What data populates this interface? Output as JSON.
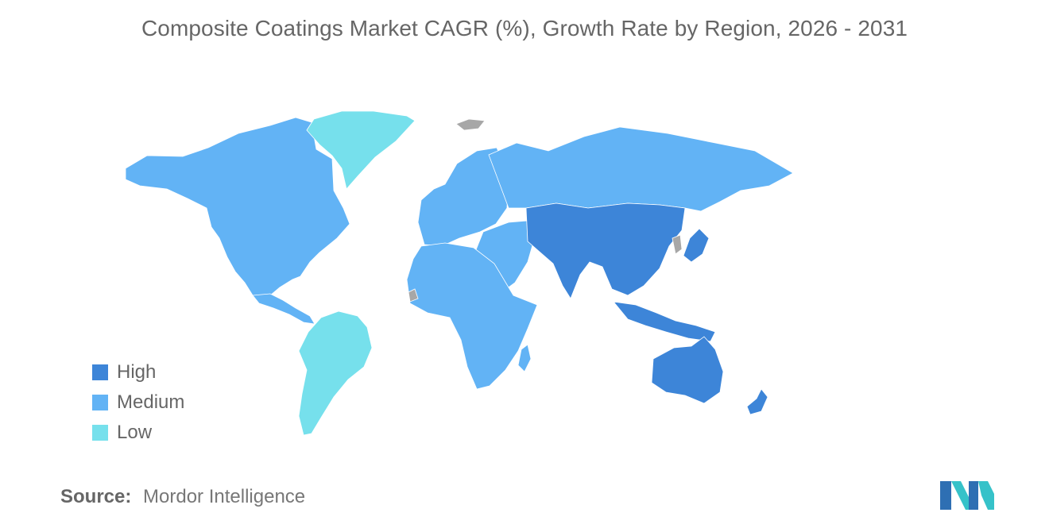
{
  "title": "Composite Coatings Market CAGR (%), Growth Rate by Region, 2026 - 2031",
  "legend": [
    {
      "label": "High",
      "color": "#3d85d8"
    },
    {
      "label": "Medium",
      "color": "#62b3f5"
    },
    {
      "label": "Low",
      "color": "#76e0ec"
    }
  ],
  "no_data_color": "#a7a7a7",
  "regions": {
    "north_america": "Medium",
    "south_america": "Low",
    "greenland": "Low",
    "europe": "Medium",
    "russia": "Medium",
    "africa": "Medium",
    "middle_east": "Medium",
    "asia_pacific": "High",
    "oceania": "High"
  },
  "source": {
    "label": "Source:",
    "value": "Mordor Intelligence"
  }
}
